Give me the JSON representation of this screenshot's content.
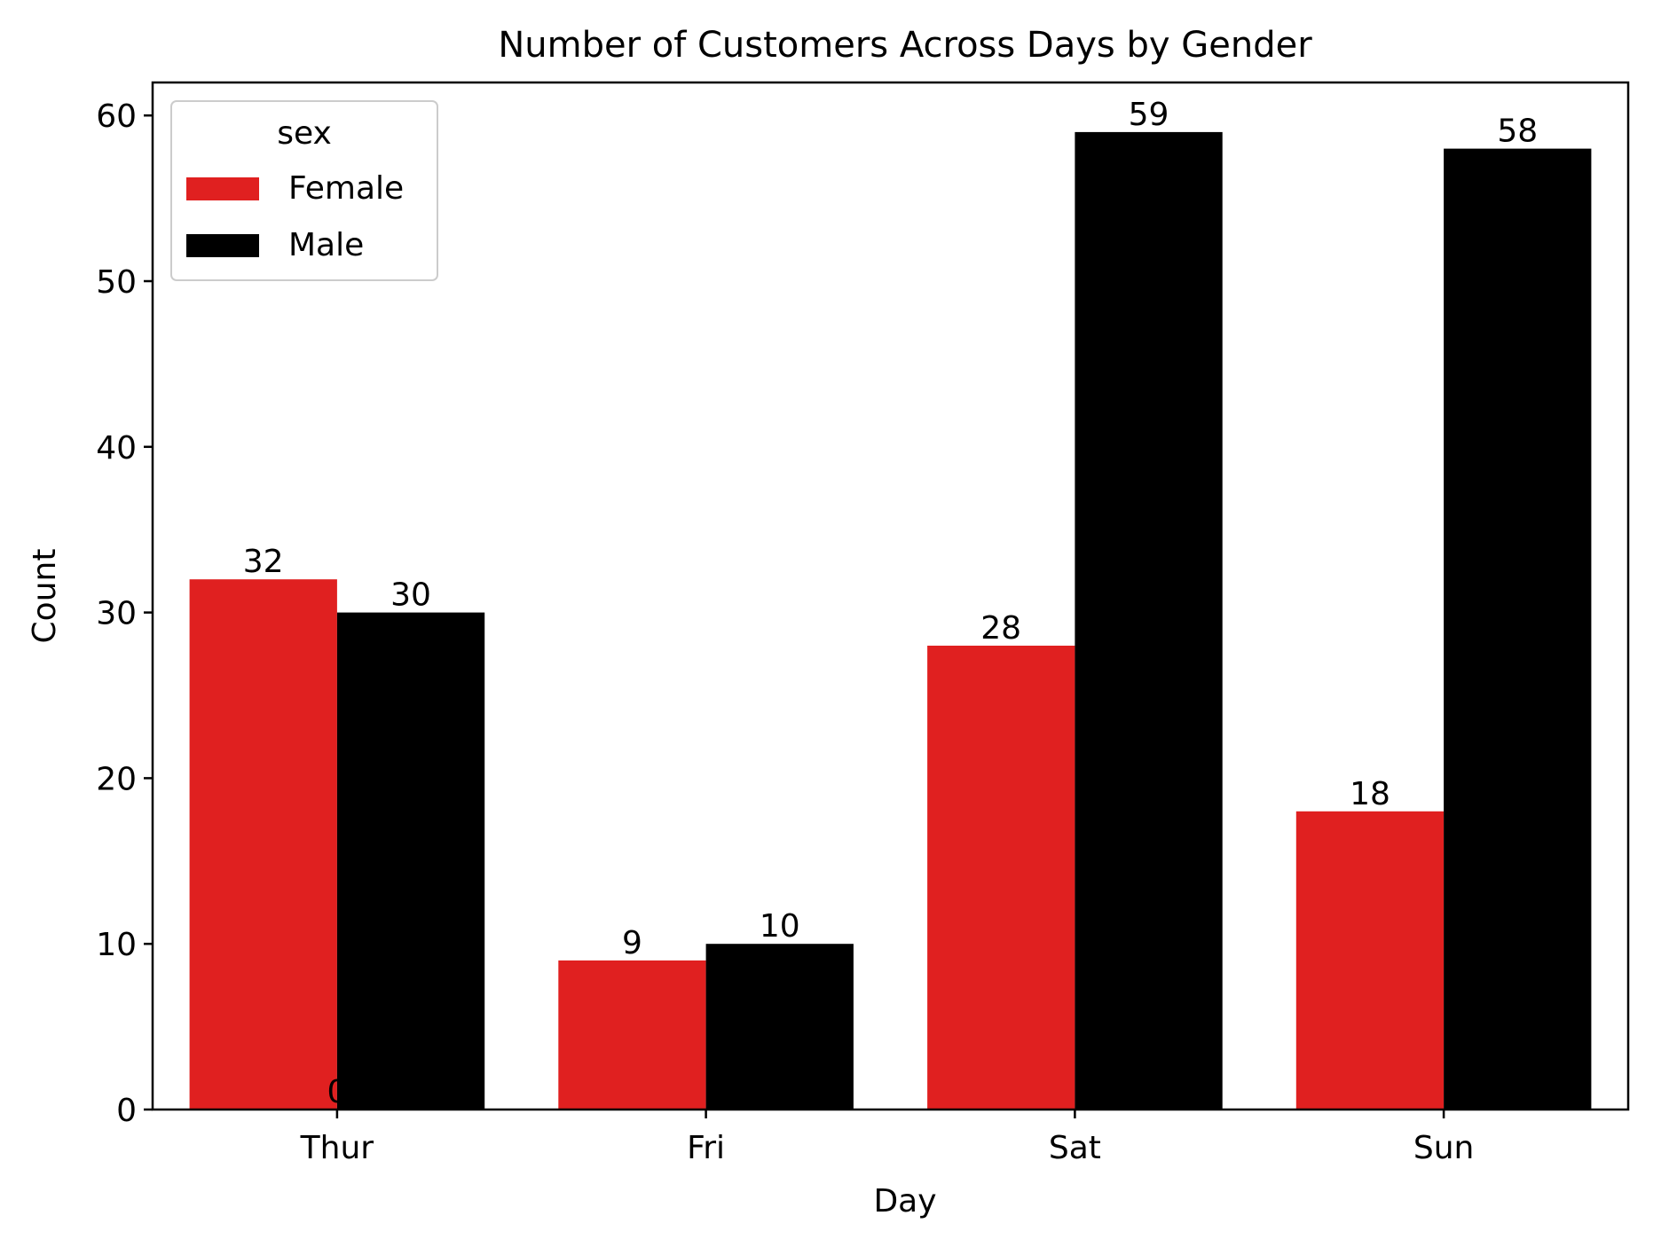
{
  "chart_data": {
    "type": "bar",
    "title": "Number of Customers Across Days by Gender",
    "xlabel": "Day",
    "ylabel": "Count",
    "categories": [
      "Thur",
      "Fri",
      "Sat",
      "Sun"
    ],
    "ylim": [
      0,
      62
    ],
    "yticks": [
      0,
      10,
      20,
      30,
      40,
      50,
      60
    ],
    "grid": false,
    "legend": {
      "title": "sex",
      "placement": "top-left"
    },
    "series": [
      {
        "name": "Female",
        "color": "#e02020",
        "values": [
          32,
          9,
          28,
          18
        ]
      },
      {
        "name": "Male",
        "color": "#000000",
        "values": [
          30,
          10,
          59,
          58
        ]
      }
    ],
    "stray_label": "0"
  }
}
